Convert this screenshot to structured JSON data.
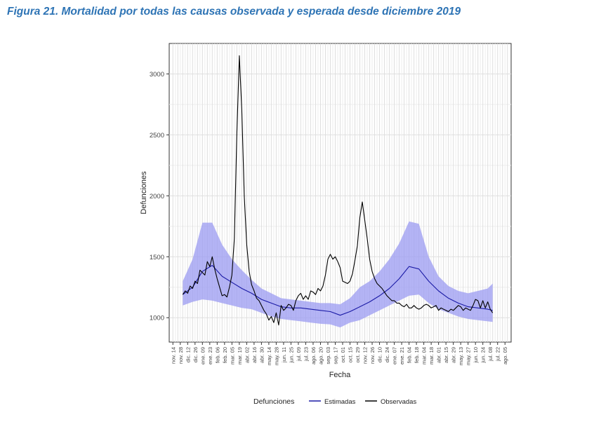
{
  "figure_title": "Figura 21. Mortalidad por todas las causas observada y esperada desde diciembre 2019",
  "colors": {
    "estimated_line": "#1a1aa6",
    "band": "#9b9bf2",
    "observed_line": "#000000",
    "grid_major": "#dedede",
    "grid_minor": "#eeeeee",
    "title": "#2e74b5"
  },
  "chart_data": {
    "type": "line",
    "xlabel": "Fecha",
    "ylabel": "Defunciones",
    "ylim": [
      800,
      3250
    ],
    "yticks": [
      1000,
      1500,
      2000,
      2500,
      3000
    ],
    "x_domain_weeks": [
      -1.5,
      137.5
    ],
    "grid": true,
    "legend": {
      "title": "Defunciones",
      "position": "bottom",
      "entries": [
        "Estimadas",
        "Observadas"
      ]
    },
    "xticks": [
      "nov. 14",
      "nov. 28",
      "dic. 12",
      "dic. 26",
      "ene. 09",
      "ene. 23",
      "feb. 06",
      "feb. 20",
      "mar. 05",
      "mar. 19",
      "abr. 02",
      "abr. 16",
      "abr. 30",
      "may. 14",
      "may. 28",
      "jun. 11",
      "jun. 25",
      "jul. 09",
      "jul. 23",
      "ago. 06",
      "ago. 20",
      "sep. 03",
      "sep. 17",
      "oct. 01",
      "oct. 15",
      "oct. 29",
      "nov. 12",
      "nov. 26",
      "dic. 10",
      "dic. 24",
      "ene. 07",
      "ene. 21",
      "feb. 04",
      "feb. 18",
      "mar. 04",
      "mar. 18",
      "abr. 01",
      "abr. 15",
      "abr. 29",
      "may. 13",
      "may. 27",
      "jun. 10",
      "jun. 24",
      "jul. 08",
      "jul. 22",
      "ago. 05"
    ],
    "series": [
      {
        "name": "Estimadas",
        "x_weeks": [
          4,
          8,
          12,
          16,
          20,
          24,
          28,
          32,
          36,
          40,
          44,
          48,
          52,
          56,
          60,
          64,
          68,
          72,
          76,
          80,
          84,
          88,
          92,
          96,
          100,
          104,
          108,
          112,
          116,
          120,
          124,
          128,
          130
        ],
        "values": [
          1190,
          1250,
          1380,
          1430,
          1340,
          1290,
          1240,
          1200,
          1150,
          1120,
          1090,
          1080,
          1080,
          1070,
          1060,
          1050,
          1020,
          1050,
          1090,
          1130,
          1180,
          1240,
          1320,
          1420,
          1400,
          1300,
          1220,
          1160,
          1120,
          1090,
          1080,
          1070,
          1060
        ],
        "band_upper": [
          1300,
          1480,
          1780,
          1780,
          1600,
          1480,
          1390,
          1310,
          1240,
          1200,
          1160,
          1150,
          1140,
          1130,
          1120,
          1120,
          1110,
          1160,
          1250,
          1300,
          1380,
          1480,
          1610,
          1790,
          1770,
          1500,
          1340,
          1260,
          1220,
          1200,
          1220,
          1240,
          1280
        ],
        "band_lower": [
          1100,
          1130,
          1150,
          1140,
          1120,
          1100,
          1080,
          1070,
          1040,
          1010,
          990,
          980,
          970,
          960,
          950,
          945,
          920,
          960,
          980,
          1020,
          1060,
          1100,
          1140,
          1180,
          1190,
          1120,
          1070,
          1040,
          1010,
          990,
          980,
          970,
          965
        ]
      },
      {
        "name": "Observadas",
        "x_weeks": [
          4,
          5,
          6,
          7,
          8,
          9,
          10,
          11,
          12,
          13,
          14,
          15,
          16,
          17,
          18,
          19,
          20,
          21,
          22,
          23,
          24,
          25,
          26,
          27,
          28,
          29,
          30,
          31,
          32,
          33,
          34,
          35,
          36,
          37,
          38,
          39,
          40,
          41,
          42,
          43,
          44,
          45,
          46,
          47,
          48,
          49,
          50,
          51,
          52,
          53,
          54,
          55,
          56,
          57,
          58,
          59,
          60,
          61,
          62,
          63,
          64,
          65,
          66,
          67,
          68,
          69,
          70,
          71,
          72,
          73,
          74,
          75,
          76,
          77,
          78,
          79,
          80,
          81,
          82,
          83,
          84,
          85,
          86,
          87,
          88,
          89,
          90,
          91,
          92,
          93,
          94,
          95,
          96,
          97,
          98,
          99,
          100,
          101,
          102,
          103,
          104,
          105,
          106,
          107,
          108,
          109,
          110,
          111,
          112,
          113,
          114,
          115,
          116,
          117,
          118,
          119,
          120,
          121,
          122,
          123,
          124,
          125,
          126,
          127,
          128,
          129,
          130
        ],
        "values": [
          1190,
          1220,
          1200,
          1260,
          1240,
          1300,
          1280,
          1390,
          1370,
          1350,
          1460,
          1420,
          1500,
          1400,
          1320,
          1250,
          1180,
          1190,
          1170,
          1250,
          1350,
          1650,
          2500,
          3150,
          2700,
          2000,
          1600,
          1380,
          1270,
          1220,
          1160,
          1140,
          1100,
          1060,
          1030,
          980,
          1010,
          960,
          1040,
          940,
          1100,
          1060,
          1080,
          1110,
          1100,
          1060,
          1140,
          1180,
          1200,
          1150,
          1180,
          1150,
          1220,
          1210,
          1190,
          1240,
          1220,
          1260,
          1350,
          1480,
          1520,
          1480,
          1500,
          1460,
          1410,
          1300,
          1290,
          1280,
          1300,
          1360,
          1470,
          1590,
          1820,
          1950,
          1800,
          1650,
          1480,
          1380,
          1320,
          1280,
          1260,
          1240,
          1210,
          1180,
          1160,
          1140,
          1140,
          1120,
          1120,
          1100,
          1090,
          1110,
          1080,
          1080,
          1100,
          1080,
          1070,
          1080,
          1100,
          1110,
          1100,
          1080,
          1090,
          1100,
          1060,
          1080,
          1070,
          1060,
          1050,
          1070,
          1060,
          1080,
          1100,
          1090,
          1060,
          1080,
          1070,
          1060,
          1100,
          1150,
          1140,
          1080,
          1140,
          1080,
          1130,
          1070,
          1040
        ]
      }
    ]
  }
}
